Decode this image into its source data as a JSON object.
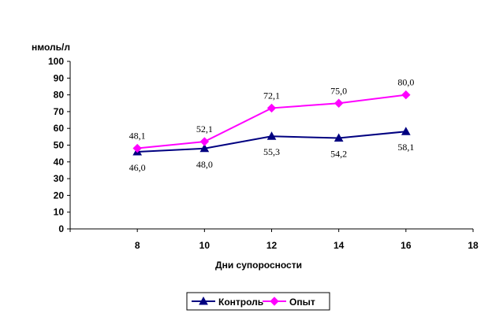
{
  "chart_data": {
    "type": "line",
    "title": "",
    "xlabel": "Дни супоросности",
    "ylabel": "нмоль/л",
    "xlim": [
      6,
      18
    ],
    "ylim": [
      0,
      100
    ],
    "x_ticks": [
      "8",
      "10",
      "12",
      "14",
      "16",
      "18"
    ],
    "y_ticks": [
      "0",
      "10",
      "20",
      "30",
      "40",
      "50",
      "60",
      "70",
      "80",
      "90",
      "100"
    ],
    "grid": false,
    "legend_position": "bottom",
    "series": [
      {
        "name": "Контроль",
        "color": "#000080",
        "marker": "triangle",
        "x": [
          8,
          10,
          12,
          14,
          16
        ],
        "values": [
          46.0,
          48.0,
          55.3,
          54.2,
          58.1
        ],
        "labels": [
          "46,0",
          "48,0",
          "55,3",
          "54,2",
          "58,1"
        ],
        "label_position": "below"
      },
      {
        "name": "Опыт",
        "color": "#ff00ff",
        "marker": "diamond",
        "x": [
          8,
          10,
          12,
          14,
          16
        ],
        "values": [
          48.1,
          52.1,
          72.1,
          75.0,
          80.0
        ],
        "labels": [
          "48,1",
          "52,1",
          "72,1",
          "75,0",
          "80,0"
        ],
        "label_position": "above"
      }
    ]
  }
}
